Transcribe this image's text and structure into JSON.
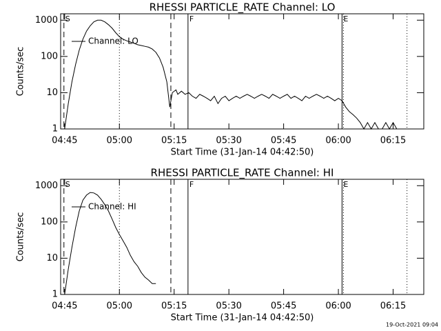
{
  "chart_data": [
    {
      "type": "line",
      "title": "RHESSI PARTICLE_RATE Channel: LO",
      "x_label": "Start Time (31-Jan-14 04:42:50)",
      "y_label": "Counts/sec",
      "log_y": true,
      "ylim": [
        1,
        1500
      ],
      "yticks": [
        1,
        10,
        100,
        1000
      ],
      "xlim": [
        283.9,
        383.4
      ],
      "xticks": [
        {
          "value": 285,
          "label": "04:45"
        },
        {
          "value": 300,
          "label": "05:00"
        },
        {
          "value": 315,
          "label": "05:15"
        },
        {
          "value": 330,
          "label": "05:30"
        },
        {
          "value": 345,
          "label": "05:45"
        },
        {
          "value": 360,
          "label": "06:00"
        },
        {
          "value": 375,
          "label": "06:15"
        }
      ],
      "vlines": [
        {
          "x": 284.8,
          "style": "dashed",
          "label": "S"
        },
        {
          "x": 300,
          "style": "dotted"
        },
        {
          "x": 314.1,
          "style": "dashed"
        },
        {
          "x": 318.8,
          "style": "solid",
          "label": "F"
        },
        {
          "x": 361.0,
          "style": "solid",
          "label": "E"
        },
        {
          "x": 361.4,
          "style": "dotted"
        },
        {
          "x": 378.8,
          "style": "dotted"
        }
      ],
      "series": [
        {
          "name": "Channel: LO",
          "color": "#000000",
          "x": [
            285,
            286,
            287,
            288,
            289,
            290,
            291,
            292,
            293,
            294,
            295,
            296,
            297,
            298,
            299,
            300,
            301,
            302,
            303,
            304,
            305,
            306,
            307,
            308,
            309,
            310,
            311,
            312,
            313,
            313.8,
            314.5,
            315.5,
            316,
            317,
            318,
            319,
            320,
            321,
            322,
            323,
            324,
            325,
            326,
            327,
            328,
            329,
            330,
            331,
            332,
            333,
            334,
            335,
            336,
            337,
            338,
            339,
            340,
            341,
            342,
            343,
            344,
            345,
            346,
            347,
            348,
            349,
            350,
            351,
            352,
            353,
            354,
            355,
            356,
            357,
            358,
            359,
            360,
            361,
            362,
            363,
            364,
            365,
            366,
            367,
            368,
            369,
            370,
            371,
            372,
            373,
            374,
            375,
            376
          ],
          "values": [
            1,
            5,
            20,
            60,
            150,
            300,
            500,
            700,
            900,
            1000,
            1000,
            900,
            750,
            600,
            450,
            350,
            300,
            270,
            250,
            230,
            210,
            200,
            190,
            180,
            160,
            130,
            90,
            50,
            20,
            4,
            10,
            12,
            9,
            11,
            9,
            10,
            8,
            7,
            9,
            8,
            7,
            6,
            8,
            5,
            7,
            8,
            6,
            7,
            8,
            7,
            8,
            9,
            8,
            7,
            8,
            9,
            8,
            7,
            9,
            8,
            7,
            8,
            9,
            7,
            8,
            7,
            6,
            8,
            7,
            8,
            9,
            8,
            7,
            8,
            7,
            6,
            7,
            6,
            4,
            3,
            2.5,
            2,
            1.5,
            1,
            1.5,
            1,
            1.5,
            1,
            1,
            1.5,
            1,
            1.5,
            1
          ]
        }
      ]
    },
    {
      "type": "line",
      "title": "RHESSI PARTICLE_RATE Channel: HI",
      "x_label": "Start Time (31-Jan-14 04:42:50)",
      "y_label": "Counts/sec",
      "log_y": true,
      "ylim": [
        1,
        1500
      ],
      "yticks": [
        1,
        10,
        100,
        1000
      ],
      "xlim": [
        283.9,
        383.4
      ],
      "xticks": [
        {
          "value": 285,
          "label": "04:45"
        },
        {
          "value": 300,
          "label": "05:00"
        },
        {
          "value": 315,
          "label": "05:15"
        },
        {
          "value": 330,
          "label": "05:30"
        },
        {
          "value": 345,
          "label": "05:45"
        },
        {
          "value": 360,
          "label": "06:00"
        },
        {
          "value": 375,
          "label": "06:15"
        }
      ],
      "vlines": [
        {
          "x": 284.8,
          "style": "dashed",
          "label": "S"
        },
        {
          "x": 300,
          "style": "dotted"
        },
        {
          "x": 314.1,
          "style": "dashed"
        },
        {
          "x": 318.8,
          "style": "solid",
          "label": "F"
        },
        {
          "x": 361.0,
          "style": "solid",
          "label": "E"
        },
        {
          "x": 361.4,
          "style": "dotted"
        },
        {
          "x": 378.8,
          "style": "dotted"
        }
      ],
      "series": [
        {
          "name": "Channel: HI",
          "color": "#000000",
          "x": [
            285,
            286,
            287,
            288,
            289,
            290,
            291,
            292,
            293,
            294,
            295,
            296,
            297,
            298,
            299,
            300,
            301,
            302,
            303,
            304,
            305,
            306,
            307,
            308,
            309,
            310
          ],
          "values": [
            1,
            5,
            20,
            70,
            200,
            400,
            550,
            650,
            630,
            550,
            420,
            300,
            200,
            120,
            70,
            45,
            30,
            20,
            12,
            8,
            6,
            4,
            3,
            2.5,
            2,
            2
          ]
        }
      ]
    }
  ],
  "footer": "19-Oct-2021 09:04"
}
